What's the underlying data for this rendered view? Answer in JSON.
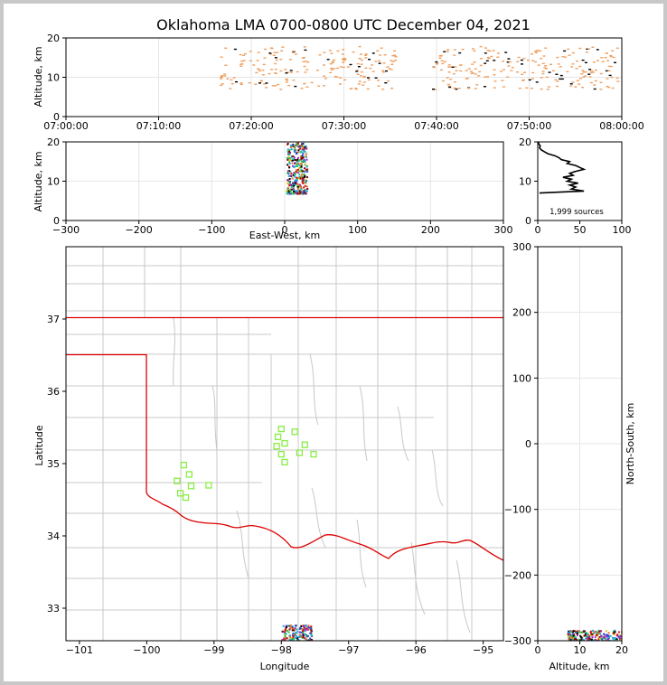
{
  "chart_data": {
    "type": "scatter",
    "title": "Oklahoma LMA 0700-0800 UTC December 04, 2021",
    "colors": {
      "time_marks": "#f0a060",
      "dark_marks": "#000000",
      "state_border": "#dd0000",
      "county_lines": "#c8c8c8",
      "stations": "#88ee44",
      "grid": "#e6e6e6"
    },
    "time_altitude": {
      "ylabel": "Altitude, km",
      "xlim_minutes": [
        0,
        60
      ],
      "ylim": [
        0,
        20
      ],
      "xticks": [
        "07:00:00",
        "07:10:00",
        "07:20:00",
        "07:30:00",
        "07:40:00",
        "07:50:00",
        "08:00:00"
      ],
      "yticks": [
        "0",
        "10",
        "20"
      ],
      "activity_windows_minutes": [
        [
          16.5,
          35.5
        ],
        [
          39.5,
          60
        ]
      ],
      "altitude_range_km": [
        7,
        18
      ]
    },
    "eastwest_altitude": {
      "xlabel": "East-West, km",
      "ylabel": "Altitude, km",
      "xlim": [
        -300,
        300
      ],
      "ylim": [
        0,
        20
      ],
      "xticks": [
        "−300",
        "−200",
        "−100",
        "0",
        "100",
        "200",
        "300"
      ],
      "yticks": [
        "0",
        "10",
        "20"
      ],
      "cluster_x_km": [
        2,
        30
      ],
      "cluster_alt_km": [
        7,
        20
      ]
    },
    "histogram": {
      "xlim": [
        0,
        100
      ],
      "ylim": [
        0,
        20
      ],
      "xticks": [
        "0",
        "50",
        "100"
      ],
      "yticks": [
        "0",
        "10",
        "20"
      ],
      "profile": [
        [
          7.0,
          2
        ],
        [
          7.5,
          55
        ],
        [
          8.0,
          40
        ],
        [
          8.5,
          45
        ],
        [
          9.0,
          38
        ],
        [
          9.5,
          48
        ],
        [
          10.0,
          35
        ],
        [
          10.5,
          40
        ],
        [
          11.0,
          30
        ],
        [
          11.5,
          42
        ],
        [
          12.0,
          38
        ],
        [
          12.5,
          45
        ],
        [
          13.0,
          55
        ],
        [
          13.5,
          50
        ],
        [
          14.0,
          45
        ],
        [
          14.5,
          35
        ],
        [
          15.0,
          38
        ],
        [
          15.5,
          28
        ],
        [
          16.0,
          25
        ],
        [
          16.5,
          20
        ],
        [
          17.0,
          12
        ],
        [
          17.5,
          8
        ],
        [
          18.0,
          4
        ],
        [
          18.5,
          2
        ],
        [
          19.0,
          3
        ],
        [
          19.5,
          1
        ],
        [
          20.0,
          1
        ]
      ],
      "sources_label": "1,999 sources"
    },
    "map": {
      "xlabel": "Longitude",
      "ylabel": "Latitude",
      "xlim": [
        -101.2,
        -94.7
      ],
      "ylim": [
        32.55,
        38.0
      ],
      "xticks": [
        "−101",
        "−100",
        "−99",
        "−98",
        "−97",
        "−96",
        "−95"
      ],
      "xtick_values": [
        -101,
        -100,
        -99,
        -98,
        -97,
        -96,
        -95
      ],
      "yticks": [
        "33",
        "34",
        "35",
        "36",
        "37"
      ],
      "ytick_values": [
        33,
        34,
        35,
        36,
        37
      ],
      "stations": [
        [
          -98.0,
          35.48
        ],
        [
          -98.05,
          35.37
        ],
        [
          -98.07,
          35.24
        ],
        [
          -97.95,
          35.28
        ],
        [
          -97.8,
          35.44
        ],
        [
          -98.0,
          35.13
        ],
        [
          -97.73,
          35.15
        ],
        [
          -97.65,
          35.26
        ],
        [
          -97.52,
          35.13
        ],
        [
          -97.95,
          35.02
        ],
        [
          -99.45,
          34.98
        ],
        [
          -99.37,
          34.85
        ],
        [
          -99.55,
          34.76
        ],
        [
          -99.34,
          34.69
        ],
        [
          -99.08,
          34.7
        ],
        [
          -99.5,
          34.59
        ],
        [
          -99.42,
          34.53
        ]
      ],
      "lightning_cluster": {
        "lon_range": [
          -98.0,
          -97.55
        ],
        "lat_range": [
          32.55,
          32.78
        ]
      }
    },
    "northsouth_altitude": {
      "xlabel": "Altitude, km",
      "ylabel": "North-South, km",
      "xlim": [
        0,
        20
      ],
      "ylim": [
        -300,
        300
      ],
      "xticks": [
        "0",
        "10",
        "20"
      ],
      "yticks": [
        "300",
        "200",
        "100",
        "0",
        "−100",
        "−200",
        "−300"
      ],
      "cluster_alt_km": [
        7,
        20
      ],
      "cluster_ns_km": [
        -300,
        -283
      ]
    }
  }
}
